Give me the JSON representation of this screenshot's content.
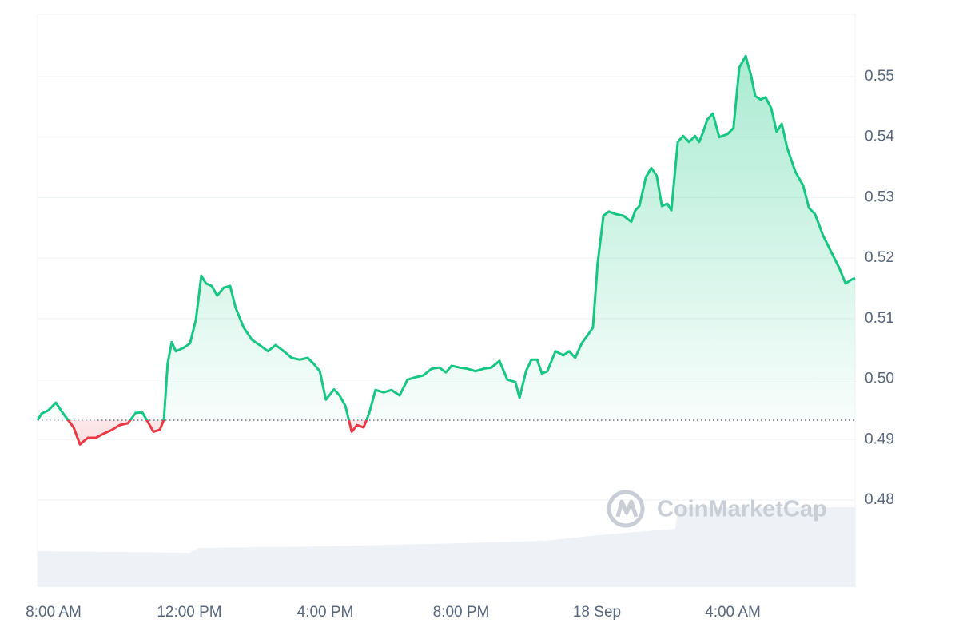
{
  "chart_data": {
    "type": "line",
    "x": [
      7.53,
      7.65,
      7.84,
      8.07,
      8.26,
      8.42,
      8.59,
      8.78,
      9.01,
      9.25,
      9.48,
      9.72,
      9.95,
      10.19,
      10.42,
      10.61,
      10.78,
      10.94,
      11.13,
      11.25,
      11.36,
      11.48,
      11.6,
      11.84,
      12.02,
      12.19,
      12.35,
      12.49,
      12.66,
      12.82,
      13.01,
      13.2,
      13.36,
      13.6,
      13.84,
      14.07,
      14.31,
      14.54,
      14.78,
      15.01,
      15.25,
      15.48,
      15.65,
      15.84,
      16.02,
      16.26,
      16.42,
      16.59,
      16.78,
      16.94,
      17.13,
      17.29,
      17.48,
      17.72,
      17.95,
      18.19,
      18.42,
      18.66,
      18.89,
      19.13,
      19.36,
      19.55,
      19.72,
      19.95,
      20.19,
      20.42,
      20.66,
      20.89,
      21.13,
      21.36,
      21.6,
      21.72,
      21.91,
      22.07,
      22.24,
      22.38,
      22.54,
      22.78,
      23.01,
      23.18,
      23.36,
      23.55,
      23.72,
      23.88,
      24.02,
      24.19,
      24.35,
      24.54,
      24.78,
      25.01,
      25.13,
      25.25,
      25.44,
      25.6,
      25.76,
      25.91,
      26.07,
      26.19,
      26.38,
      26.54,
      26.71,
      26.89,
      27.01,
      27.13,
      27.25,
      27.41,
      27.6,
      27.84,
      28.02,
      28.19,
      28.38,
      28.54,
      28.66,
      28.82,
      28.96,
      29.13,
      29.29,
      29.44,
      29.6,
      29.84,
      30.07,
      30.24,
      30.42,
      30.66,
      30.89,
      31.13,
      31.32,
      31.48,
      31.6
    ],
    "values": [
      0.4932,
      0.4943,
      0.4948,
      0.4961,
      0.4945,
      0.4933,
      0.492,
      0.4892,
      0.4903,
      0.4903,
      0.491,
      0.4916,
      0.4924,
      0.4927,
      0.4944,
      0.4945,
      0.4929,
      0.4913,
      0.4916,
      0.4933,
      0.5026,
      0.5061,
      0.5046,
      0.5052,
      0.5059,
      0.5098,
      0.5171,
      0.5158,
      0.5154,
      0.5138,
      0.5151,
      0.5154,
      0.5118,
      0.5085,
      0.5065,
      0.5056,
      0.5046,
      0.5056,
      0.5046,
      0.5035,
      0.5032,
      0.5035,
      0.5026,
      0.5013,
      0.4966,
      0.4983,
      0.4973,
      0.4956,
      0.4913,
      0.4924,
      0.492,
      0.4943,
      0.4982,
      0.4978,
      0.4982,
      0.4973,
      0.4999,
      0.5003,
      0.5006,
      0.5017,
      0.5019,
      0.5011,
      0.5022,
      0.5019,
      0.5017,
      0.5013,
      0.5017,
      0.5019,
      0.503,
      0.4999,
      0.4995,
      0.4969,
      0.5013,
      0.5032,
      0.5032,
      0.5009,
      0.5013,
      0.5046,
      0.5039,
      0.5046,
      0.5035,
      0.5059,
      0.5072,
      0.5085,
      0.5191,
      0.527,
      0.5277,
      0.5273,
      0.527,
      0.526,
      0.5279,
      0.5286,
      0.5334,
      0.5349,
      0.5336,
      0.5286,
      0.529,
      0.5279,
      0.5392,
      0.5402,
      0.5392,
      0.5402,
      0.5392,
      0.5409,
      0.5429,
      0.5439,
      0.54,
      0.5405,
      0.5415,
      0.5515,
      0.5534,
      0.5501,
      0.5468,
      0.5462,
      0.5466,
      0.5448,
      0.5409,
      0.5422,
      0.5382,
      0.5343,
      0.532,
      0.5283,
      0.5273,
      0.5237,
      0.5211,
      0.5184,
      0.5158,
      0.5164,
      0.5167
    ],
    "baseline": 0.4932,
    "color_up": "#16c784",
    "color_down": "#ea3943",
    "volume": {
      "x": [
        7.53,
        12.0,
        12.3,
        16.0,
        20.0,
        22.5,
        24.0,
        26.3,
        26.4,
        31.6
      ],
      "values": [
        45,
        43,
        49,
        51,
        55,
        58,
        65,
        73,
        100,
        100
      ],
      "color": "#eef1f5"
    },
    "volume_lim": [
      0,
      100
    ],
    "xlim": [
      7.53,
      31.6
    ],
    "xticks": [
      {
        "value": 8,
        "label": "8:00 AM"
      },
      {
        "value": 12,
        "label": "12:00 PM"
      },
      {
        "value": 16,
        "label": "4:00 PM"
      },
      {
        "value": 20,
        "label": "8:00 PM"
      },
      {
        "value": 24,
        "label": "18 Sep"
      },
      {
        "value": 28,
        "label": "4:00 AM"
      }
    ],
    "ylim": [
      0.4656,
      0.5603
    ],
    "yticks": [
      0.48,
      0.49,
      {
        "value": 0.5,
        "label": "0.50"
      },
      0.51,
      0.52,
      0.53,
      0.54,
      0.55
    ],
    "grid": true,
    "watermark": "CoinMarketCap"
  }
}
